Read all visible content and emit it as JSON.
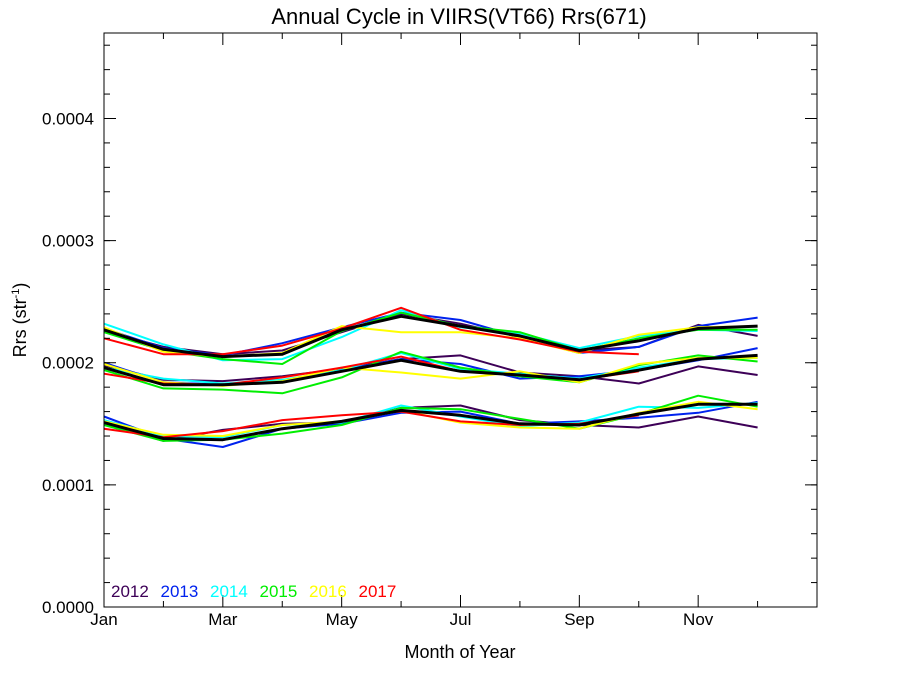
{
  "chart_data": {
    "type": "line",
    "title": "Annual Cycle in VIIRS(VT66) Rrs(671)",
    "xlabel": "Month of Year",
    "ylabel_main": "Rrs (str",
    "ylabel_sup": "-1",
    "ylabel_end": ")",
    "xlim": [
      0,
      12
    ],
    "ylim": [
      0.0,
      0.00047
    ],
    "x": [
      0,
      1,
      2,
      3,
      4,
      5,
      6,
      7,
      8,
      9,
      10,
      11
    ],
    "x_ticks": [
      {
        "value": 0,
        "label": "Jan"
      },
      {
        "value": 2,
        "label": "Mar"
      },
      {
        "value": 4,
        "label": "May"
      },
      {
        "value": 6,
        "label": "Jul"
      },
      {
        "value": 8,
        "label": "Sep"
      },
      {
        "value": 10,
        "label": "Nov"
      }
    ],
    "y_ticks": [
      {
        "value": 0.0,
        "label": "0.0000"
      },
      {
        "value": 0.0001,
        "label": "0.0001"
      },
      {
        "value": 0.0002,
        "label": "0.0002"
      },
      {
        "value": 0.0003,
        "label": "0.0003"
      },
      {
        "value": 0.0004,
        "label": "0.0004"
      }
    ],
    "grid": false,
    "legend_position": "bottom-left",
    "series": [
      {
        "name": "2012",
        "color": "#3d0057",
        "groups": [
          [
            0.000226,
            0.000213,
            0.000207,
            0.00021,
            0.000225,
            0.00024,
            0.000232,
            0.000221,
            0.00021,
            0.000213,
            0.000231,
            0.000222
          ],
          [
            0.000198,
            0.000186,
            0.000185,
            0.000189,
            0.000195,
            0.000203,
            0.000206,
            0.000192,
            0.000189,
            0.000183,
            0.000197,
            0.00019
          ],
          [
            0.000151,
            0.000136,
            0.000145,
            0.00015,
            0.000151,
            0.000163,
            0.000165,
            0.000153,
            0.000149,
            0.000147,
            0.000156,
            0.000147
          ]
        ]
      },
      {
        "name": "2013",
        "color": "#0022ee",
        "groups": [
          [
            0.000228,
            0.000212,
            0.000206,
            0.000216,
            0.000229,
            0.000241,
            0.000235,
            0.000221,
            0.000208,
            0.000213,
            0.00023,
            0.000237
          ],
          [
            0.0002,
            0.000184,
            0.000182,
            0.000184,
            0.000194,
            0.000203,
            0.000199,
            0.000187,
            0.000189,
            0.000194,
            0.000202,
            0.000212
          ],
          [
            0.000156,
            0.000138,
            0.000131,
            0.000146,
            0.00015,
            0.000159,
            0.00016,
            0.00015,
            0.000152,
            0.000155,
            0.000159,
            0.000168
          ]
        ]
      },
      {
        "name": "2014",
        "color": "#00ffff",
        "groups": [
          [
            0.000232,
            0.000215,
            0.000202,
            0.000203,
            0.000221,
            0.000243,
            0.000229,
            0.000224,
            0.000212,
            0.000222,
            0.000227,
            0.000226
          ],
          [
            0.000196,
            0.000187,
            0.000183,
            0.000186,
            0.000194,
            0.000208,
            0.000195,
            0.000191,
            0.000187,
            0.000196,
            0.000203,
            0.000204
          ],
          [
            0.000153,
            0.00014,
            0.000139,
            0.000149,
            0.000151,
            0.000165,
            0.000156,
            0.000148,
            0.000151,
            0.000164,
            0.000163,
            0.000167
          ]
        ]
      },
      {
        "name": "2015",
        "color": "#00ee00",
        "groups": [
          [
            0.000225,
            0.00021,
            0.000203,
            0.000199,
            0.000226,
            0.000241,
            0.00023,
            0.000225,
            0.00021,
            0.00022,
            0.000227,
            0.000227
          ],
          [
            0.000194,
            0.000179,
            0.000178,
            0.000175,
            0.000188,
            0.000209,
            0.000196,
            0.000189,
            0.000184,
            0.000198,
            0.000206,
            0.000201
          ],
          [
            0.000149,
            0.000136,
            0.000137,
            0.000142,
            0.000149,
            0.000163,
            0.000162,
            0.000154,
            0.000146,
            0.000158,
            0.000173,
            0.000164
          ]
        ]
      },
      {
        "name": "2016",
        "color": "#ffff00",
        "groups": [
          [
            0.000229,
            0.000209,
            0.000205,
            0.000208,
            0.00023,
            0.000225,
            0.000225,
            0.00022,
            0.000208,
            0.000223,
            0.000229,
            0.00023
          ],
          [
            0.000199,
            0.000184,
            0.000181,
            0.000185,
            0.000196,
            0.000192,
            0.000187,
            0.000193,
            0.000184,
            0.000199,
            0.000204,
            0.000204
          ],
          [
            0.000152,
            0.000141,
            0.00014,
            0.000149,
            0.000152,
            0.000161,
            0.000151,
            0.000147,
            0.000146,
            0.000159,
            0.000168,
            0.000162
          ]
        ]
      },
      {
        "name": "2017",
        "color": "#ff0000",
        "groups": [
          [
            0.00022,
            0.000207,
            0.000207,
            0.000214,
            0.000228,
            0.000245,
            0.000227,
            0.000219,
            0.000209,
            0.000207
          ],
          [
            0.000191,
            0.000183,
            0.000182,
            0.000188,
            0.000196,
            0.000205,
            0.000193,
            0.00019,
            0.000186,
            0.000193
          ],
          [
            0.000146,
            0.000139,
            0.000144,
            0.000153,
            0.000157,
            0.00016,
            0.000152,
            0.000149,
            0.00015,
            0.000157
          ]
        ]
      }
    ],
    "mean_series": {
      "color": "#000000",
      "groups": [
        [
          0.000227,
          0.000211,
          0.000205,
          0.000207,
          0.000227,
          0.000238,
          0.00023,
          0.000222,
          0.00021,
          0.000218,
          0.000228,
          0.00023
        ],
        [
          0.000196,
          0.000182,
          0.000182,
          0.000184,
          0.000193,
          0.000202,
          0.000193,
          0.00019,
          0.000186,
          0.000194,
          0.000203,
          0.000206
        ],
        [
          0.000151,
          0.000138,
          0.000137,
          0.000146,
          0.000152,
          0.000161,
          0.000157,
          0.00015,
          0.000149,
          0.000158,
          0.000166,
          0.000166
        ]
      ]
    }
  }
}
